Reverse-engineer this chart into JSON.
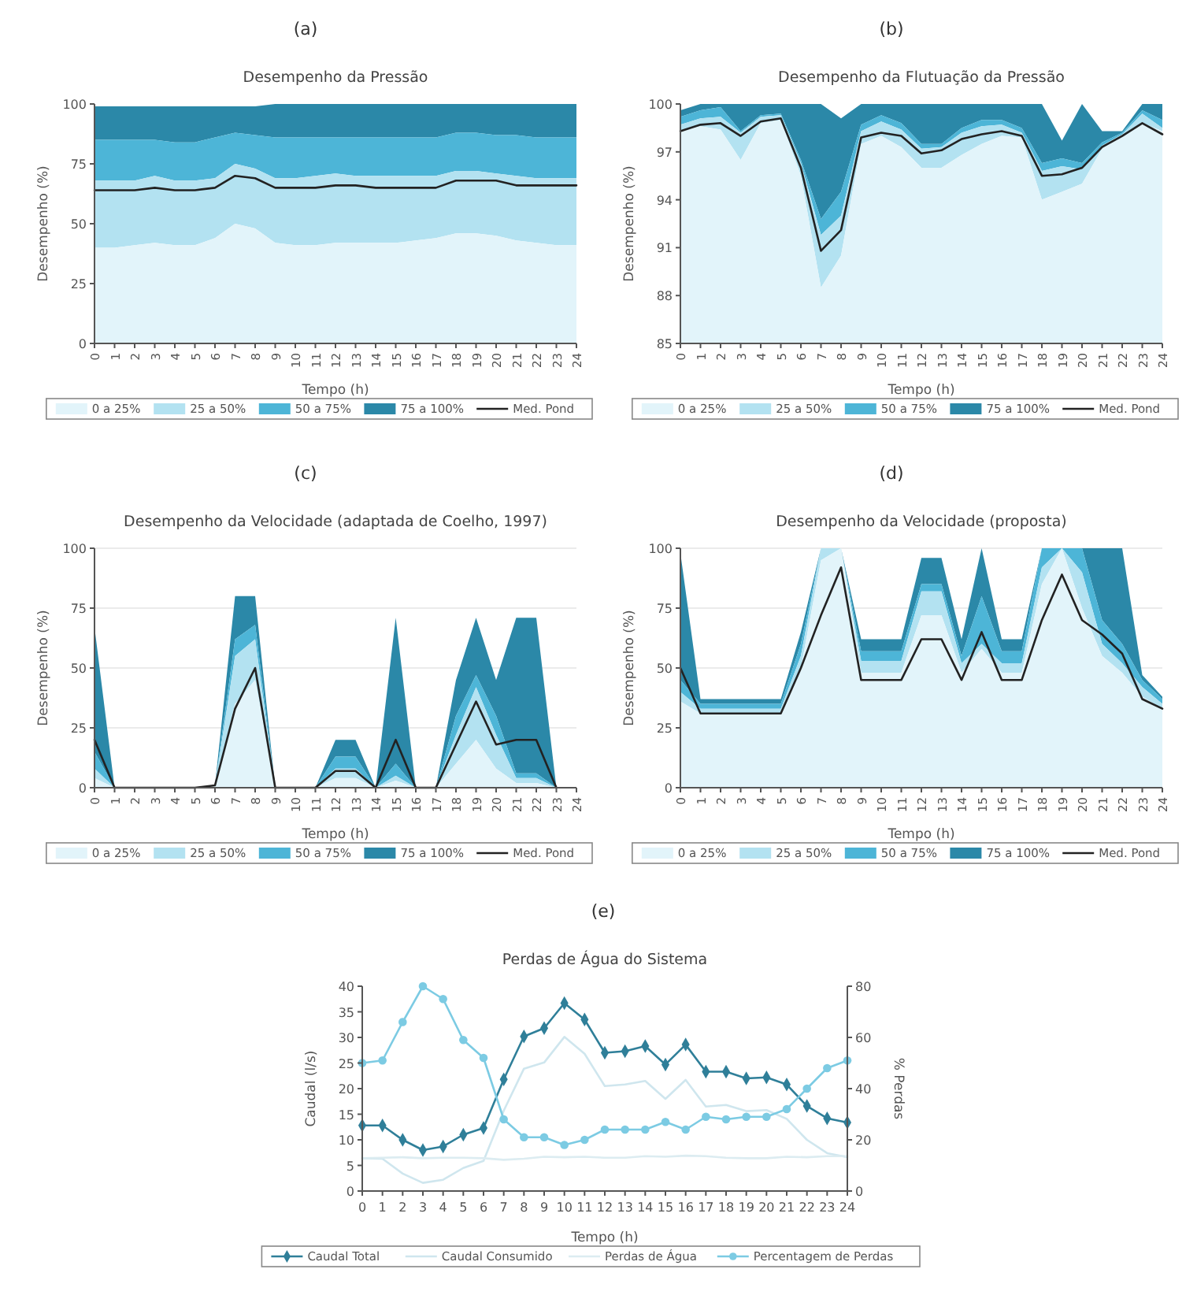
{
  "chart_data": [
    {
      "type": "area",
      "subtitle": "(a)",
      "title": "Desempenho da Pressão",
      "xlabel": "Tempo (h)",
      "ylabel": "Desempenho (%)",
      "x": [
        0,
        1,
        2,
        3,
        4,
        5,
        6,
        7,
        8,
        9,
        10,
        11,
        12,
        13,
        14,
        15,
        16,
        17,
        18,
        19,
        20,
        21,
        22,
        23,
        24
      ],
      "xlim": [
        0,
        24
      ],
      "xticks": [
        0,
        1,
        2,
        3,
        4,
        5,
        6,
        7,
        8,
        9,
        10,
        11,
        12,
        13,
        14,
        15,
        16,
        17,
        18,
        19,
        20,
        21,
        22,
        23,
        24
      ],
      "ylim": [
        0,
        100
      ],
      "yticks": [
        0,
        25,
        50,
        75,
        100
      ],
      "legend": "bottom",
      "marker": "none",
      "series": [
        {
          "name": "0 a 25%",
          "color": "#e2f4fa",
          "values": [
            40,
            40,
            41,
            42,
            41,
            41,
            44,
            50,
            48,
            42,
            41,
            41,
            42,
            42,
            42,
            42,
            43,
            44,
            46,
            46,
            45,
            43,
            42,
            41,
            41
          ]
        },
        {
          "name": "25 a 50%",
          "color": "#b3e2f1",
          "values": [
            68,
            68,
            68,
            70,
            68,
            68,
            69,
            75,
            73,
            69,
            69,
            70,
            71,
            70,
            70,
            70,
            70,
            70,
            72,
            72,
            71,
            70,
            69,
            69,
            69
          ]
        },
        {
          "name": "50 a 75%",
          "color": "#4db5d7",
          "values": [
            85,
            85,
            85,
            85,
            84,
            84,
            86,
            88,
            87,
            86,
            86,
            86,
            86,
            86,
            86,
            86,
            86,
            86,
            88,
            88,
            87,
            87,
            86,
            86,
            86
          ]
        },
        {
          "name": "75 a 100%",
          "color": "#2b88a8",
          "values": [
            99,
            99,
            99,
            99,
            99,
            99,
            99,
            99,
            99,
            100,
            100,
            100,
            100,
            100,
            100,
            100,
            100,
            100,
            100,
            100,
            100,
            100,
            100,
            100,
            100
          ]
        },
        {
          "name": "Med. Pond",
          "type": "line",
          "color": "#222222",
          "values": [
            64,
            64,
            64,
            65,
            64,
            64,
            65,
            70,
            69,
            65,
            65,
            65,
            66,
            66,
            65,
            65,
            65,
            65,
            68,
            68,
            68,
            66,
            66,
            66,
            66
          ]
        }
      ]
    },
    {
      "type": "area",
      "subtitle": "(b)",
      "title": "Desempenho da Flutuação da Pressão",
      "xlabel": "Tempo (h)",
      "ylabel": "Desempenho (%)",
      "x": [
        0,
        1,
        2,
        3,
        4,
        5,
        6,
        7,
        8,
        9,
        10,
        11,
        12,
        13,
        14,
        15,
        16,
        17,
        18,
        19,
        20,
        21,
        22,
        23,
        24
      ],
      "xlim": [
        0,
        24
      ],
      "xticks": [
        0,
        1,
        2,
        3,
        4,
        5,
        6,
        7,
        8,
        9,
        10,
        11,
        12,
        13,
        14,
        15,
        16,
        17,
        18,
        19,
        20,
        21,
        22,
        23,
        24
      ],
      "ylim": [
        85,
        100
      ],
      "yticks": [
        85,
        88,
        91,
        94,
        97,
        100
      ],
      "legend": "bottom",
      "marker": "none",
      "series": [
        {
          "name": "0 a 25%",
          "color": "#e2f4fa",
          "values": [
            98.3,
            98.6,
            98.4,
            96.5,
            98.8,
            99,
            95.5,
            88.5,
            90.5,
            97.5,
            98,
            97.3,
            96,
            96,
            96.8,
            97.5,
            98,
            97.9,
            94,
            94.5,
            95,
            97.2,
            98,
            98.8,
            98.3
          ]
        },
        {
          "name": "25 a 50%",
          "color": "#b3e2f1",
          "values": [
            98.7,
            99.1,
            99.2,
            98.2,
            99.2,
            99.3,
            96.3,
            91.8,
            93,
            98.3,
            98.9,
            98.4,
            97.2,
            97.3,
            98.2,
            98.6,
            98.7,
            98.2,
            95.8,
            96.1,
            95.9,
            97.4,
            98.1,
            99.4,
            98.5
          ]
        },
        {
          "name": "50 a 75%",
          "color": "#4db5d7",
          "values": [
            99.2,
            99.6,
            99.8,
            98.3,
            99.3,
            99.4,
            96.5,
            92.8,
            94.5,
            98.7,
            99.3,
            98.8,
            97.5,
            97.5,
            98.5,
            99,
            99,
            98.5,
            96.3,
            96.6,
            96.3,
            97.6,
            98.2,
            99.6,
            99
          ]
        },
        {
          "name": "75 a 100%",
          "color": "#2b88a8",
          "values": [
            99.6,
            100,
            100,
            100,
            100,
            100,
            100,
            100,
            99.1,
            100,
            100,
            100,
            100,
            100,
            100,
            100,
            100,
            100,
            100,
            97.7,
            100,
            98.3,
            98.3,
            100,
            100
          ]
        },
        {
          "name": "Med. Pond",
          "type": "line",
          "color": "#222222",
          "values": [
            98.3,
            98.7,
            98.8,
            98,
            98.9,
            99.1,
            96,
            90.8,
            92.1,
            97.9,
            98.2,
            98,
            96.9,
            97.1,
            97.8,
            98.1,
            98.3,
            98,
            95.5,
            95.6,
            96,
            97.3,
            98,
            98.8,
            98.1
          ]
        }
      ]
    },
    {
      "type": "area",
      "subtitle": "(c)",
      "title": "Desempenho da Velocidade (adaptada de Coelho, 1997)",
      "xlabel": "Tempo (h)",
      "ylabel": "Desempenho (%)",
      "x": [
        0,
        1,
        2,
        3,
        4,
        5,
        6,
        7,
        8,
        9,
        10,
        11,
        12,
        13,
        14,
        15,
        16,
        17,
        18,
        19,
        20,
        21,
        22,
        23
      ],
      "xlim": [
        0,
        24
      ],
      "xticks": [
        0,
        1,
        2,
        3,
        4,
        5,
        6,
        7,
        8,
        9,
        10,
        11,
        12,
        13,
        14,
        15,
        16,
        17,
        18,
        19,
        20,
        21,
        22,
        23,
        24
      ],
      "ylim": [
        0,
        100
      ],
      "yticks": [
        0,
        25,
        50,
        75,
        100
      ],
      "legend": "bottom",
      "grid": "y",
      "marker": "none",
      "series": [
        {
          "name": "0 a 25%",
          "color": "#e2f4fa",
          "values": [
            4,
            0,
            0,
            0,
            0,
            0,
            1,
            35,
            45,
            0,
            0,
            0,
            4,
            4,
            0,
            3,
            0,
            0,
            10,
            20,
            8,
            2,
            2,
            0
          ]
        },
        {
          "name": "25 a 50%",
          "color": "#b3e2f1",
          "values": [
            8,
            0,
            0,
            0,
            0,
            0,
            1,
            55,
            62,
            0,
            0,
            0,
            8,
            8,
            0,
            5,
            0,
            0,
            22,
            42,
            22,
            4,
            4,
            0
          ]
        },
        {
          "name": "50 a 75%",
          "color": "#4db5d7",
          "values": [
            15,
            0,
            0,
            0,
            0,
            0,
            1,
            62,
            68,
            0,
            0,
            0,
            13,
            13,
            0,
            10,
            0,
            0,
            30,
            47,
            30,
            6,
            6,
            0
          ]
        },
        {
          "name": "75 a 100%",
          "color": "#2b88a8",
          "values": [
            67,
            0,
            0,
            0,
            0,
            0,
            1,
            80,
            80,
            0,
            0,
            0,
            20,
            20,
            0,
            71,
            0,
            0,
            45,
            71,
            45,
            71,
            71,
            0
          ]
        },
        {
          "name": "Med. Pond",
          "type": "line",
          "color": "#222222",
          "values": [
            20,
            0,
            0,
            0,
            0,
            0,
            1,
            33,
            50,
            0,
            0,
            0,
            7,
            7,
            0,
            20,
            0,
            0,
            18,
            36,
            18,
            20,
            20,
            0
          ]
        }
      ]
    },
    {
      "type": "area",
      "subtitle": "(d)",
      "title": "Desempenho da Velocidade (proposta)",
      "xlabel": "Tempo (h)",
      "ylabel": "Desempenho (%)",
      "x": [
        0,
        1,
        2,
        3,
        4,
        5,
        6,
        7,
        8,
        9,
        10,
        11,
        12,
        13,
        14,
        15,
        16,
        17,
        18,
        19,
        20,
        21,
        22,
        23,
        24
      ],
      "xlim": [
        0,
        24
      ],
      "xticks": [
        0,
        1,
        2,
        3,
        4,
        5,
        6,
        7,
        8,
        9,
        10,
        11,
        12,
        13,
        14,
        15,
        16,
        17,
        18,
        19,
        20,
        21,
        22,
        23,
        24
      ],
      "ylim": [
        0,
        100
      ],
      "yticks": [
        0,
        25,
        50,
        75,
        100
      ],
      "legend": "bottom",
      "grid": "y",
      "marker": "none",
      "series": [
        {
          "name": "0 a 25%",
          "color": "#e2f4fa",
          "values": [
            36,
            31,
            31,
            31,
            31,
            31,
            50,
            95,
            100,
            48,
            48,
            48,
            72,
            72,
            48,
            58,
            48,
            48,
            85,
            100,
            75,
            55,
            48,
            38,
            33
          ]
        },
        {
          "name": "25 a 50%",
          "color": "#b3e2f1",
          "values": [
            40,
            33,
            33,
            33,
            33,
            33,
            55,
            100,
            100,
            53,
            53,
            53,
            82,
            82,
            52,
            60,
            52,
            52,
            92,
            100,
            90,
            60,
            52,
            42,
            35
          ]
        },
        {
          "name": "50 a 75%",
          "color": "#4db5d7",
          "values": [
            45,
            35,
            35,
            35,
            35,
            35,
            60,
            100,
            100,
            57,
            57,
            57,
            85,
            85,
            55,
            80,
            57,
            57,
            100,
            100,
            100,
            70,
            60,
            45,
            37
          ]
        },
        {
          "name": "75 a 100%",
          "color": "#2b88a8",
          "values": [
            98,
            37,
            37,
            37,
            37,
            37,
            65,
            100,
            100,
            62,
            62,
            62,
            96,
            96,
            62,
            100,
            62,
            62,
            100,
            100,
            100,
            100,
            100,
            47,
            38
          ]
        },
        {
          "name": "Med. Pond",
          "type": "line",
          "color": "#222222",
          "values": [
            50,
            31,
            31,
            31,
            31,
            31,
            50,
            72,
            92,
            45,
            45,
            45,
            62,
            62,
            45,
            65,
            45,
            45,
            70,
            89,
            70,
            64,
            56,
            37,
            33
          ]
        }
      ]
    },
    {
      "type": "line",
      "subtitle": "(e)",
      "title": "Perdas de Água do Sistema",
      "xlabel": "Tempo (h)",
      "ylabel": "Caudal (l/s)",
      "y2label": "% Perdas",
      "x": [
        0,
        1,
        2,
        3,
        4,
        5,
        6,
        7,
        8,
        9,
        10,
        11,
        12,
        13,
        14,
        15,
        16,
        17,
        18,
        19,
        20,
        21,
        22,
        23,
        24
      ],
      "xlim": [
        0,
        24
      ],
      "xticks": [
        0,
        1,
        2,
        3,
        4,
        5,
        6,
        7,
        8,
        9,
        10,
        11,
        12,
        13,
        14,
        15,
        16,
        17,
        18,
        19,
        20,
        21,
        22,
        23,
        24
      ],
      "ylim": [
        0,
        40
      ],
      "yticks": [
        0,
        5,
        10,
        15,
        20,
        25,
        30,
        35,
        40
      ],
      "y2lim": [
        0,
        80
      ],
      "y2ticks": [
        0,
        20,
        40,
        60,
        80
      ],
      "legend": "bottom",
      "marker": "circle",
      "series": [
        {
          "name": "Caudal Total",
          "color": "#2f7f99",
          "marker": "diamond",
          "values": [
            12.8,
            12.8,
            10,
            8,
            8.7,
            11,
            12.3,
            21.8,
            30.2,
            31.8,
            36.7,
            33.5,
            27,
            27.3,
            28.3,
            24.7,
            28.6,
            23.3,
            23.3,
            22,
            22.2,
            20.8,
            16.6,
            14.2,
            13.4
          ]
        },
        {
          "name": "Caudal Consumido",
          "color": "#cfe6ee",
          "marker": "none",
          "values": [
            6.4,
            6.3,
            3.4,
            1.6,
            2.2,
            4.5,
            5.9,
            15.7,
            23.9,
            25.1,
            30.1,
            26.8,
            20.5,
            20.8,
            21.5,
            18,
            21.7,
            16.5,
            16.8,
            15.6,
            15.8,
            14.1,
            10,
            7.4,
            6.6
          ]
        },
        {
          "name": "Perdas de Água",
          "color": "#dcecf1",
          "marker": "none",
          "values": [
            6.4,
            6.5,
            6.6,
            6.4,
            6.5,
            6.5,
            6.4,
            6.1,
            6.3,
            6.7,
            6.6,
            6.7,
            6.5,
            6.5,
            6.8,
            6.7,
            6.9,
            6.8,
            6.5,
            6.4,
            6.4,
            6.7,
            6.6,
            6.8,
            6.8
          ]
        },
        {
          "name": "Percentagem de Perdas",
          "color": "#7ccbe3",
          "axis": "y2",
          "values": [
            50,
            51,
            66,
            80,
            75,
            59,
            52,
            28,
            21,
            21,
            18,
            20,
            24,
            24,
            24,
            27,
            24,
            29,
            28,
            29,
            29,
            32,
            40,
            48,
            51
          ]
        }
      ]
    }
  ]
}
